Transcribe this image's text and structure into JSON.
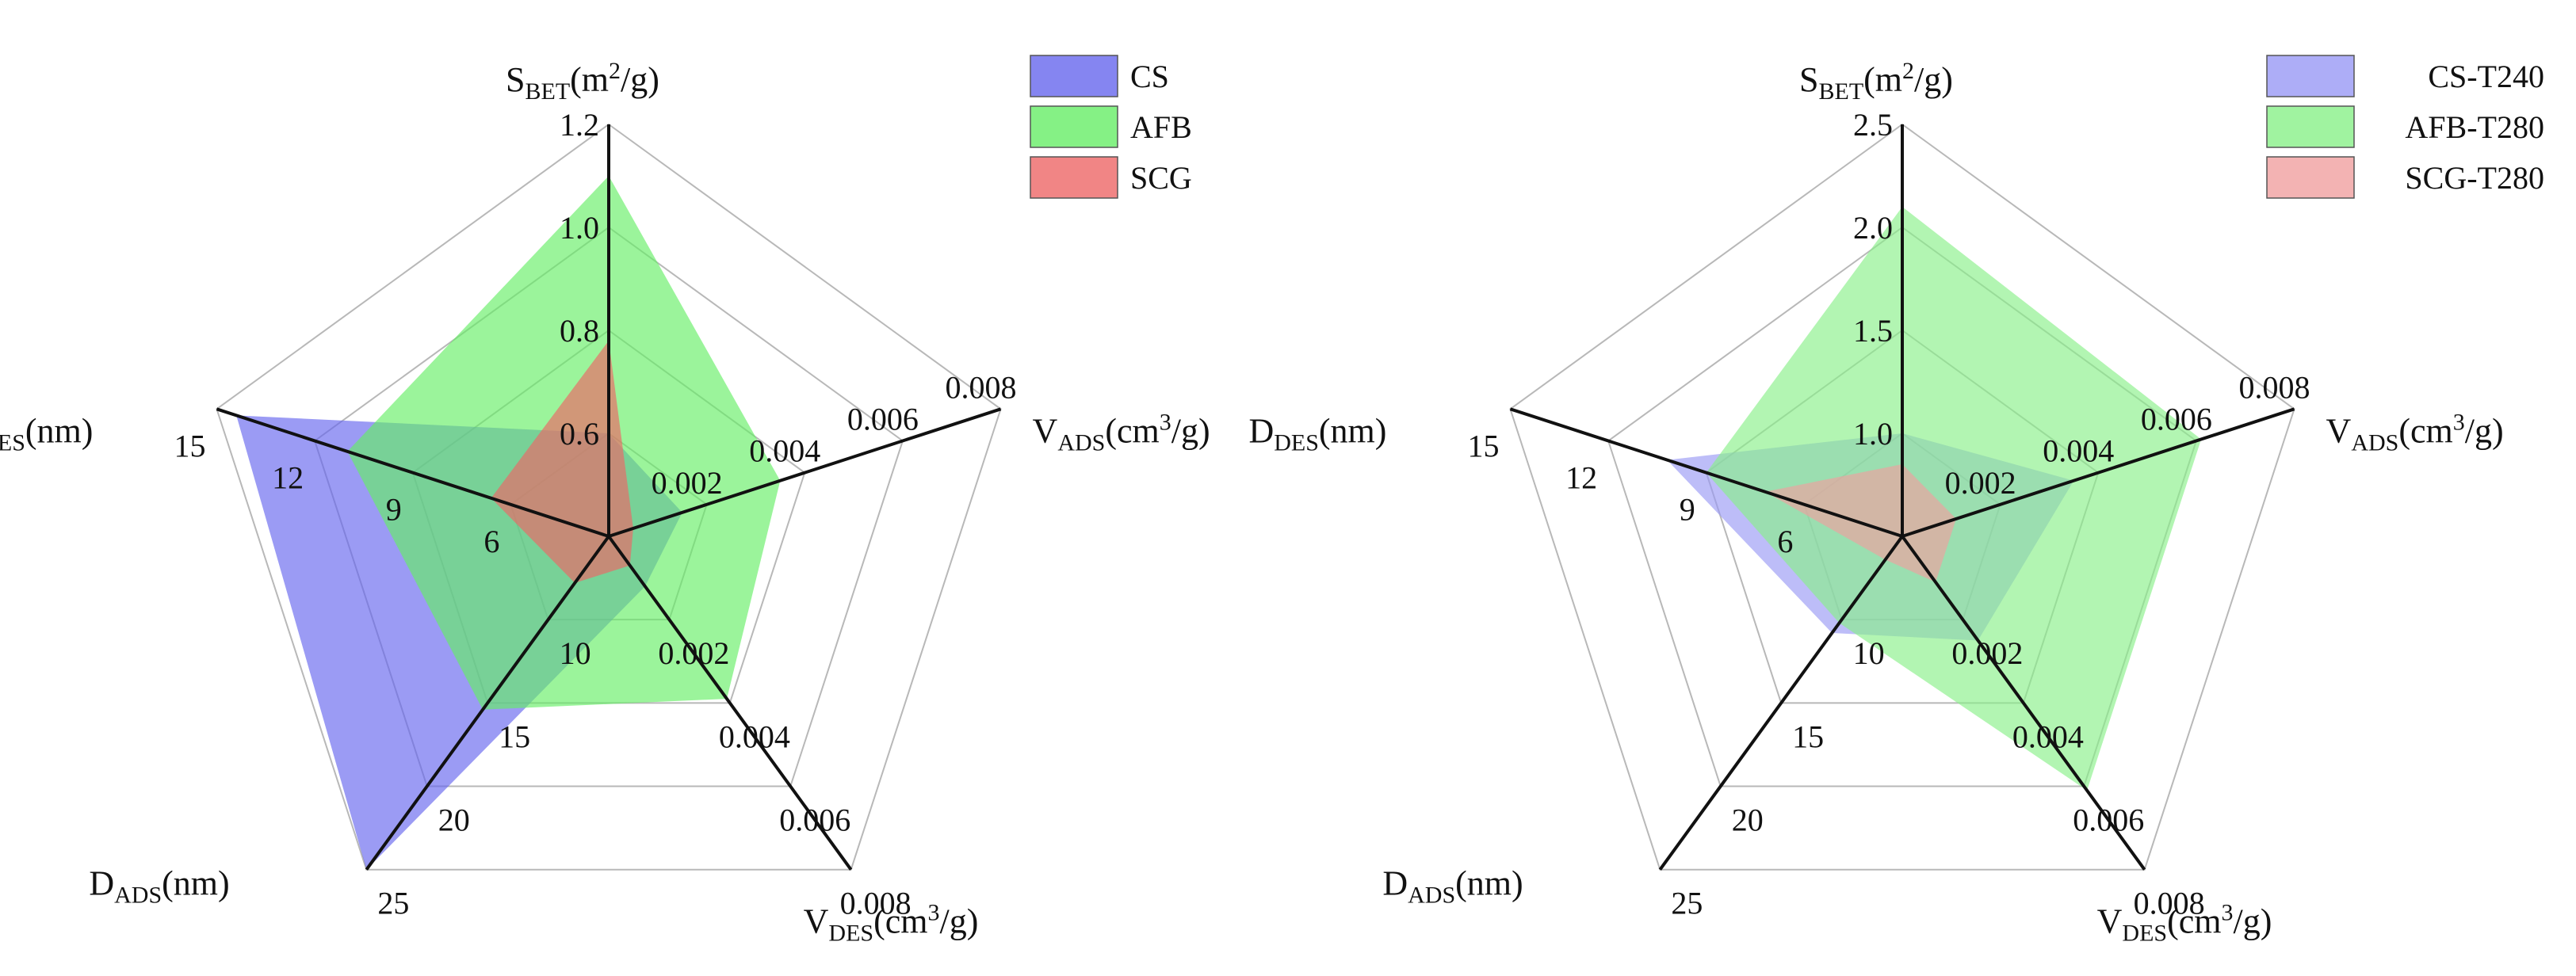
{
  "chart_data": [
    {
      "type": "radar",
      "id": "left",
      "axes": [
        {
          "key": "sbet",
          "main": "S",
          "sub": "BET",
          "rest1": "(m",
          "sup": "2",
          "rest2": "/g)",
          "min": 0.4,
          "max": 1.2,
          "ticks": [
            {
              "v": 0.6,
              "label": "0.6"
            },
            {
              "v": 0.8,
              "label": "0.8"
            },
            {
              "v": 1.0,
              "label": "1.0"
            },
            {
              "v": 1.2,
              "label": "1.2"
            }
          ]
        },
        {
          "key": "vads",
          "main": "V",
          "sub": "ADS",
          "rest1": "(cm",
          "sup": "3",
          "rest2": "/g)",
          "min": 0,
          "max": 0.008,
          "ticks": [
            {
              "v": 0.002,
              "label": "0.002"
            },
            {
              "v": 0.004,
              "label": "0.004"
            },
            {
              "v": 0.006,
              "label": "0.006"
            },
            {
              "v": 0.008,
              "label": "0.008"
            }
          ]
        },
        {
          "key": "vdes",
          "main": "V",
          "sub": "DES",
          "rest1": "(cm",
          "sup": "3",
          "rest2": "/g)",
          "min": 0,
          "max": 0.008,
          "ticks": [
            {
              "v": 0.002,
              "label": "0.002"
            },
            {
              "v": 0.004,
              "label": "0.004"
            },
            {
              "v": 0.006,
              "label": "0.006"
            },
            {
              "v": 0.008,
              "label": "0.008"
            }
          ]
        },
        {
          "key": "dads",
          "main": "D",
          "sub": "ADS",
          "rest1": "(nm)",
          "sup": "",
          "rest2": "",
          "min": 5,
          "max": 25,
          "ticks": [
            {
              "v": 10,
              "label": "10"
            },
            {
              "v": 15,
              "label": "15"
            },
            {
              "v": 20,
              "label": "20"
            },
            {
              "v": 25,
              "label": "25"
            }
          ]
        },
        {
          "key": "ddes",
          "main": "D",
          "sub": "DES",
          "rest1": "(nm)",
          "sup": "",
          "rest2": "",
          "min": 3,
          "max": 15,
          "ticks": [
            {
              "v": 6,
              "label": "6"
            },
            {
              "v": 9,
              "label": "9"
            },
            {
              "v": 12,
              "label": "12"
            },
            {
              "v": 15,
              "label": "15"
            }
          ]
        }
      ],
      "series": [
        {
          "name": "CS",
          "color": "#6666ee",
          "values": [
            0.6,
            0.0015,
            0.0012,
            25,
            14.4
          ]
        },
        {
          "name": "AFB",
          "color": "#66ee66",
          "values": [
            1.1,
            0.0035,
            0.0039,
            15.4,
            11.0
          ]
        },
        {
          "name": "SCG",
          "color": "#ee6666",
          "values": [
            0.78,
            0.0005,
            0.0007,
            7.8,
            6.6
          ]
        }
      ]
    },
    {
      "type": "radar",
      "id": "right",
      "axes": [
        {
          "key": "sbet",
          "main": "S",
          "sub": "BET",
          "rest1": "(m",
          "sup": "2",
          "rest2": "/g)",
          "min": 0.5,
          "max": 2.5,
          "ticks": [
            {
              "v": 1.0,
              "label": "1.0"
            },
            {
              "v": 1.5,
              "label": "1.5"
            },
            {
              "v": 2.0,
              "label": "2.0"
            },
            {
              "v": 2.5,
              "label": "2.5"
            }
          ]
        },
        {
          "key": "vads",
          "main": "V",
          "sub": "ADS",
          "rest1": "(cm",
          "sup": "3",
          "rest2": "/g)",
          "min": 0,
          "max": 0.008,
          "ticks": [
            {
              "v": 0.002,
              "label": "0.002"
            },
            {
              "v": 0.004,
              "label": "0.004"
            },
            {
              "v": 0.006,
              "label": "0.006"
            },
            {
              "v": 0.008,
              "label": "0.008"
            }
          ]
        },
        {
          "key": "vdes",
          "main": "V",
          "sub": "DES",
          "rest1": "(cm",
          "sup": "3",
          "rest2": "/g)",
          "min": 0,
          "max": 0.008,
          "ticks": [
            {
              "v": 0.002,
              "label": "0.002"
            },
            {
              "v": 0.004,
              "label": "0.004"
            },
            {
              "v": 0.006,
              "label": "0.006"
            },
            {
              "v": 0.008,
              "label": "0.008"
            }
          ]
        },
        {
          "key": "dads",
          "main": "D",
          "sub": "ADS",
          "rest1": "(nm)",
          "sup": "",
          "rest2": "",
          "min": 5,
          "max": 25,
          "ticks": [
            {
              "v": 10,
              "label": "10"
            },
            {
              "v": 15,
              "label": "15"
            },
            {
              "v": 20,
              "label": "20"
            },
            {
              "v": 25,
              "label": "25"
            }
          ]
        },
        {
          "key": "ddes",
          "main": "D",
          "sub": "DES",
          "rest1": "(nm)",
          "sup": "",
          "rest2": "",
          "min": 3,
          "max": 15,
          "ticks": [
            {
              "v": 6,
              "label": "6"
            },
            {
              "v": 9,
              "label": "9"
            },
            {
              "v": 12,
              "label": "12"
            },
            {
              "v": 15,
              "label": "15"
            }
          ]
        }
      ],
      "series": [
        {
          "name": "CS-T240",
          "color": "#9999f5",
          "values": [
            1.0,
            0.0035,
            0.0025,
            10.8,
            10.2
          ]
        },
        {
          "name": "AFB-T280",
          "color": "#88f088",
          "values": [
            2.1,
            0.0061,
            0.0061,
            10.2,
            9.0
          ]
        },
        {
          "name": "SCG-T280",
          "color": "#f0a0a0",
          "values": [
            0.85,
            0.0011,
            0.0011,
            6.4,
            7.2
          ]
        }
      ]
    }
  ]
}
